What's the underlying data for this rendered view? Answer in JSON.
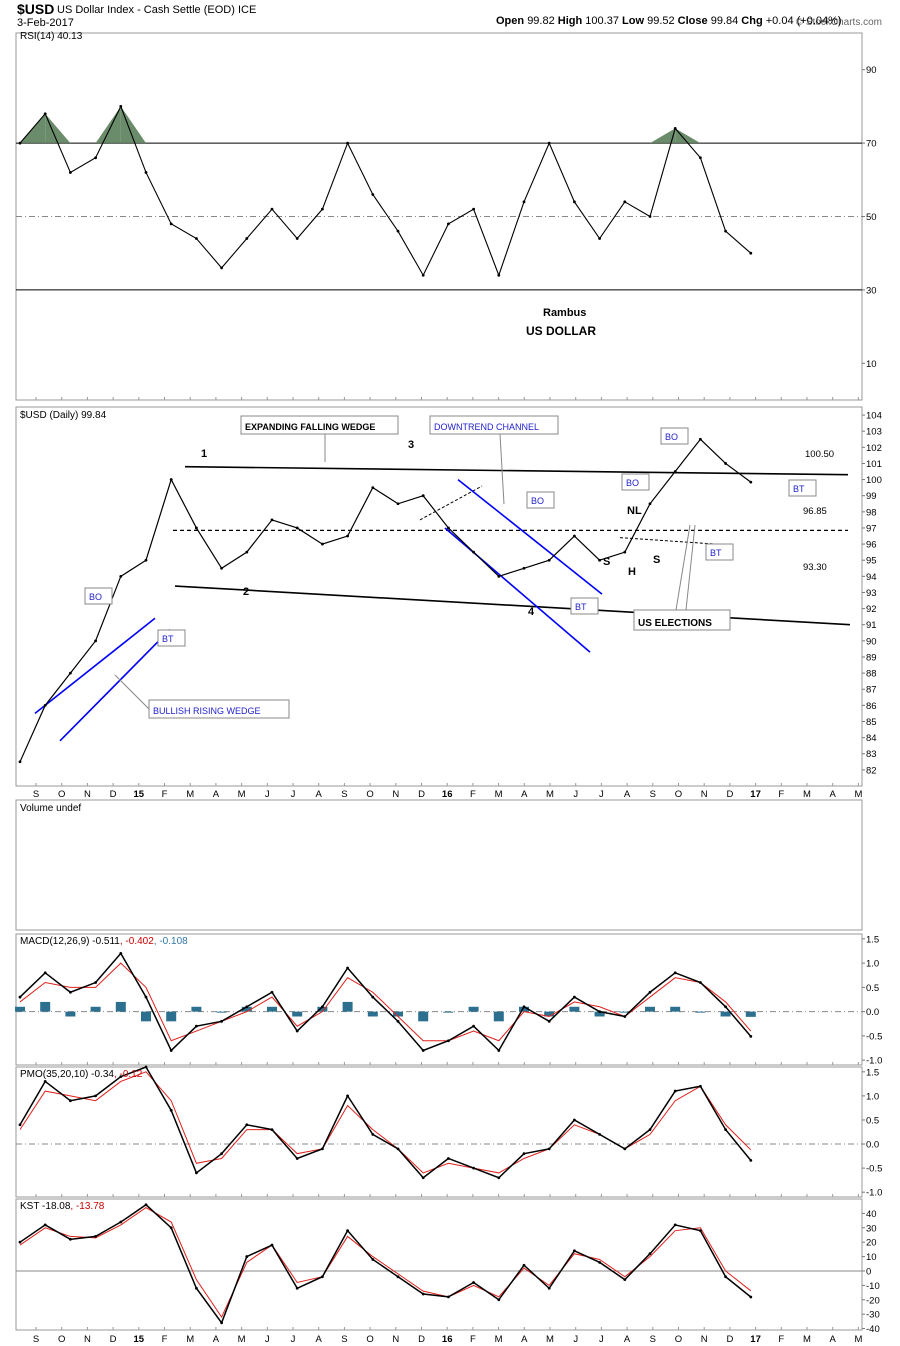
{
  "header": {
    "symbol": "$USD",
    "name": "US Dollar Index - Cash Settle (EOD) ICE",
    "date": "3-Feb-2017",
    "watermark": "© StockCharts.com",
    "ohlc": {
      "open_label": "Open",
      "open": "99.82",
      "high_label": "High",
      "high": "100.37",
      "low_label": "Low",
      "low": "99.52",
      "close_label": "Close",
      "close": "99.84",
      "chg_label": "Chg",
      "chg": "+0.04 (+0.04%)"
    }
  },
  "colors": {
    "price": "#000000",
    "rsi_fill": "#5b7f5b",
    "signal": "#e0201b",
    "hist": "#2d6f8f",
    "channel": "#0000ff",
    "neg_value": "#cc0000",
    "pos_value": "#3377aa"
  },
  "chart_data": [
    {
      "type": "line",
      "panel": "rsi",
      "title": "RSI(14) 40.13",
      "ylim": [
        0,
        100
      ],
      "y_ticks": [
        "90",
        "70",
        "50",
        "30",
        "10"
      ],
      "y_tick_values": [
        90,
        70,
        50,
        30,
        10
      ],
      "x": [
        "2014-09",
        "2014-10",
        "2014-11",
        "2014-12",
        "2015-01",
        "2015-02",
        "2015-03",
        "2015-04",
        "2015-05",
        "2015-06",
        "2015-07",
        "2015-08",
        "2015-09",
        "2015-10",
        "2015-11",
        "2015-12",
        "2016-01",
        "2016-02",
        "2016-03",
        "2016-04",
        "2016-05",
        "2016-06",
        "2016-07",
        "2016-08",
        "2016-09",
        "2016-10",
        "2016-11",
        "2016-12",
        "2017-01",
        "2017-02"
      ],
      "values": [
        70,
        78,
        62,
        66,
        80,
        62,
        48,
        44,
        36,
        44,
        52,
        44,
        52,
        70,
        56,
        46,
        34,
        48,
        52,
        34,
        54,
        70,
        54,
        44,
        54,
        50,
        74,
        66,
        46,
        40
      ],
      "annotations": [
        "Rambus",
        "US DOLLAR"
      ]
    },
    {
      "type": "line",
      "panel": "price",
      "title": "$USD (Daily) 99.84",
      "ylim": [
        81,
        104.5
      ],
      "y_ticks": [
        "104",
        "103",
        "102",
        "101",
        "100",
        "99",
        "98",
        "97",
        "96",
        "95",
        "94",
        "93",
        "92",
        "91",
        "90",
        "89",
        "88",
        "87",
        "86",
        "85",
        "84",
        "83",
        "82"
      ],
      "y_tick_values": [
        104,
        103,
        102,
        101,
        100,
        99,
        98,
        97,
        96,
        95,
        94,
        93,
        92,
        91,
        90,
        89,
        88,
        87,
        86,
        85,
        84,
        83,
        82
      ],
      "x": [
        "2014-09",
        "2014-10",
        "2014-11",
        "2014-12",
        "2015-01",
        "2015-02",
        "2015-03",
        "2015-04",
        "2015-05",
        "2015-06",
        "2015-07",
        "2015-08",
        "2015-09",
        "2015-10",
        "2015-11",
        "2015-12",
        "2016-01",
        "2016-02",
        "2016-03",
        "2016-04",
        "2016-05",
        "2016-06",
        "2016-07",
        "2016-08",
        "2016-09",
        "2016-10",
        "2016-11",
        "2016-12",
        "2017-01",
        "2017-02"
      ],
      "values": [
        82.5,
        86.0,
        88.0,
        90.0,
        94.0,
        95.0,
        100.0,
        97.0,
        94.5,
        95.5,
        97.5,
        97.0,
        96.0,
        96.5,
        99.5,
        98.5,
        99.0,
        97.0,
        95.5,
        94.0,
        94.5,
        95.0,
        96.5,
        95.0,
        95.5,
        98.5,
        100.5,
        102.5,
        101.0,
        99.84
      ],
      "levels": [
        "100.50",
        "96.85",
        "93.30"
      ],
      "level_values": [
        100.5,
        96.85,
        93.3
      ],
      "annotations": {
        "expanding_wedge": "EXPANDING FALLING WEDGE",
        "downtrend_channel": "DOWNTREND CHANNEL",
        "rising_wedge": "BULLISH RISING WEDGE",
        "us_elections": "US ELECTIONS",
        "bo": "BO",
        "bt": "BT",
        "p1": "1",
        "p2": "2",
        "p3": "3",
        "p4": "4",
        "s": "S",
        "h": "H",
        "nl": "NL"
      }
    },
    {
      "type": "bar",
      "panel": "volume",
      "title": "Volume undef"
    },
    {
      "type": "line",
      "panel": "macd",
      "title_prefix": "MACD(12,26,9)",
      "title_values": [
        "-0.511",
        "-0.402",
        "-0.108"
      ],
      "ylim": [
        -1.1,
        1.6
      ],
      "y_ticks": [
        "1.5",
        "1.0",
        "0.5",
        "0.0",
        "-0.5",
        "-1.0"
      ],
      "y_tick_values": [
        1.5,
        1.0,
        0.5,
        0.0,
        -0.5,
        -1.0
      ],
      "x": [
        "2014-09",
        "2014-10",
        "2014-11",
        "2014-12",
        "2015-01",
        "2015-02",
        "2015-03",
        "2015-04",
        "2015-05",
        "2015-06",
        "2015-07",
        "2015-08",
        "2015-09",
        "2015-10",
        "2015-11",
        "2015-12",
        "2016-01",
        "2016-02",
        "2016-03",
        "2016-04",
        "2016-05",
        "2016-06",
        "2016-07",
        "2016-08",
        "2016-09",
        "2016-10",
        "2016-11",
        "2016-12",
        "2017-01",
        "2017-02"
      ],
      "values": [
        0.3,
        0.8,
        0.4,
        0.6,
        1.2,
        0.3,
        -0.8,
        -0.3,
        -0.2,
        0.1,
        0.4,
        -0.4,
        0.1,
        0.9,
        0.3,
        -0.2,
        -0.8,
        -0.6,
        -0.3,
        -0.8,
        0.1,
        -0.2,
        0.3,
        0.0,
        -0.1,
        0.4,
        0.8,
        0.6,
        0.1,
        -0.51
      ],
      "signal": [
        0.2,
        0.6,
        0.5,
        0.5,
        1.0,
        0.5,
        -0.6,
        -0.4,
        -0.2,
        0.0,
        0.3,
        -0.3,
        0.0,
        0.7,
        0.4,
        -0.1,
        -0.6,
        -0.6,
        -0.4,
        -0.6,
        0.0,
        -0.1,
        0.2,
        0.1,
        -0.1,
        0.3,
        0.7,
        0.6,
        0.2,
        -0.4
      ],
      "histogram": [
        0.1,
        0.2,
        -0.1,
        0.1,
        0.2,
        -0.2,
        -0.2,
        0.1,
        0.0,
        0.1,
        0.1,
        -0.1,
        0.1,
        0.2,
        -0.1,
        -0.1,
        -0.2,
        0.0,
        0.1,
        -0.2,
        0.1,
        -0.1,
        0.1,
        -0.1,
        0.0,
        0.1,
        0.1,
        0.0,
        -0.1,
        -0.108
      ]
    },
    {
      "type": "line",
      "panel": "pmo",
      "title_prefix": "PMO(35,20,10)",
      "title_values": [
        "-0.34",
        "-0.12"
      ],
      "ylim": [
        -1.1,
        1.6
      ],
      "y_ticks": [
        "1.5",
        "1.0",
        "0.5",
        "0.0",
        "-0.5",
        "-1.0"
      ],
      "y_tick_values": [
        1.5,
        1.0,
        0.5,
        0.0,
        -0.5,
        -1.0
      ],
      "x": [
        "2014-09",
        "2014-10",
        "2014-11",
        "2014-12",
        "2015-01",
        "2015-02",
        "2015-03",
        "2015-04",
        "2015-05",
        "2015-06",
        "2015-07",
        "2015-08",
        "2015-09",
        "2015-10",
        "2015-11",
        "2015-12",
        "2016-01",
        "2016-02",
        "2016-03",
        "2016-04",
        "2016-05",
        "2016-06",
        "2016-07",
        "2016-08",
        "2016-09",
        "2016-10",
        "2016-11",
        "2016-12",
        "2017-01",
        "2017-02"
      ],
      "values": [
        0.4,
        1.3,
        0.9,
        1.0,
        1.4,
        1.6,
        0.7,
        -0.6,
        -0.2,
        0.4,
        0.3,
        -0.3,
        -0.1,
        1.0,
        0.2,
        -0.1,
        -0.7,
        -0.3,
        -0.5,
        -0.7,
        -0.2,
        -0.1,
        0.5,
        0.2,
        -0.1,
        0.3,
        1.1,
        1.2,
        0.3,
        -0.34
      ],
      "signal": [
        0.3,
        1.1,
        1.0,
        0.9,
        1.3,
        1.5,
        0.9,
        -0.4,
        -0.3,
        0.3,
        0.3,
        -0.2,
        -0.1,
        0.8,
        0.3,
        -0.1,
        -0.6,
        -0.4,
        -0.5,
        -0.6,
        -0.3,
        -0.1,
        0.4,
        0.2,
        -0.1,
        0.2,
        0.9,
        1.2,
        0.4,
        -0.12
      ]
    },
    {
      "type": "line",
      "panel": "kst",
      "title_prefix": "KST",
      "title_values": [
        "-18.08",
        "-13.78"
      ],
      "ylim": [
        -41,
        50
      ],
      "y_ticks": [
        "40",
        "30",
        "20",
        "10",
        "0",
        "-10",
        "-20",
        "-30",
        "-40"
      ],
      "y_tick_values": [
        40,
        30,
        20,
        10,
        0,
        -10,
        -20,
        -30,
        -40
      ],
      "x_ticks": [
        "S",
        "O",
        "N",
        "D",
        "15",
        "F",
        "M",
        "A",
        "M",
        "J",
        "J",
        "A",
        "S",
        "O",
        "N",
        "D",
        "16",
        "F",
        "M",
        "A",
        "M",
        "J",
        "J",
        "A",
        "S",
        "O",
        "N",
        "D",
        "17",
        "F",
        "M",
        "A",
        "M"
      ],
      "x": [
        "2014-09",
        "2014-10",
        "2014-11",
        "2014-12",
        "2015-01",
        "2015-02",
        "2015-03",
        "2015-04",
        "2015-05",
        "2015-06",
        "2015-07",
        "2015-08",
        "2015-09",
        "2015-10",
        "2015-11",
        "2015-12",
        "2016-01",
        "2016-02",
        "2016-03",
        "2016-04",
        "2016-05",
        "2016-06",
        "2016-07",
        "2016-08",
        "2016-09",
        "2016-10",
        "2016-11",
        "2016-12",
        "2017-01",
        "2017-02"
      ],
      "values": [
        20,
        32,
        22,
        24,
        34,
        46,
        30,
        -12,
        -36,
        10,
        18,
        -12,
        -4,
        28,
        8,
        -4,
        -16,
        -18,
        -8,
        -20,
        4,
        -12,
        14,
        6,
        -6,
        12,
        32,
        28,
        -4,
        -18.08
      ],
      "signal": [
        18,
        30,
        24,
        23,
        32,
        44,
        34,
        -6,
        -32,
        6,
        18,
        -8,
        -4,
        24,
        10,
        -2,
        -14,
        -18,
        -10,
        -18,
        2,
        -10,
        12,
        8,
        -4,
        10,
        28,
        30,
        0,
        -13.78
      ]
    }
  ]
}
